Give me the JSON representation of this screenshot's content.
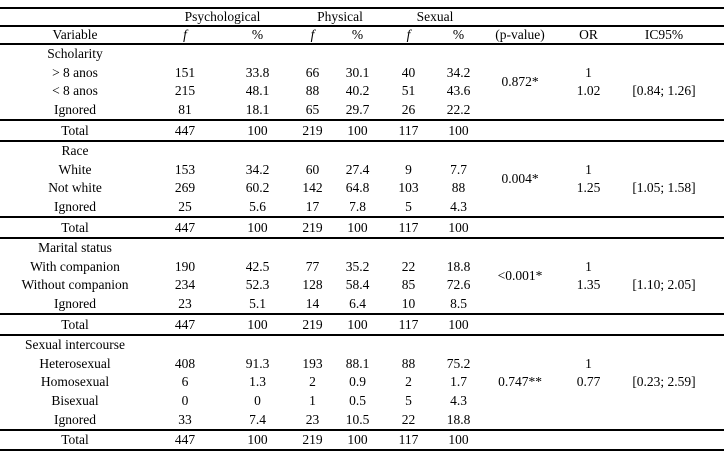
{
  "table": {
    "group_headers": [
      "Psychological",
      "Physical",
      "Sexual"
    ],
    "column_headers": [
      "Variable",
      "f",
      "%",
      "f",
      "%",
      "f",
      "%",
      "(p-value)",
      "OR",
      "IC95%"
    ],
    "sections": [
      {
        "title": "Scholarity",
        "p_value": "0.872*",
        "p_start": 0,
        "p_span": 2,
        "rows": [
          {
            "label": "> 8 anos",
            "values": [
              "151",
              "33.8",
              "66",
              "30.1",
              "40",
              "34.2"
            ],
            "or": "1",
            "ic": ""
          },
          {
            "label": "< 8 anos",
            "values": [
              "215",
              "48.1",
              "88",
              "40.2",
              "51",
              "43.6"
            ],
            "or": "1.02",
            "ic": "[0.84; 1.26]"
          },
          {
            "label": "Ignored",
            "values": [
              "81",
              "18.1",
              "65",
              "29.7",
              "26",
              "22.2"
            ],
            "or": "",
            "ic": ""
          }
        ],
        "total": {
          "label": "Total",
          "values": [
            "447",
            "100",
            "219",
            "100",
            "117",
            "100"
          ]
        }
      },
      {
        "title": "Race",
        "p_value": "0.004*",
        "p_start": 0,
        "p_span": 2,
        "rows": [
          {
            "label": "White",
            "values": [
              "153",
              "34.2",
              "60",
              "27.4",
              "9",
              "7.7"
            ],
            "or": "1",
            "ic": ""
          },
          {
            "label": "Not white",
            "values": [
              "269",
              "60.2",
              "142",
              "64.8",
              "103",
              "88"
            ],
            "or": "1.25",
            "ic": "[1.05; 1.58]"
          },
          {
            "label": "Ignored",
            "values": [
              "25",
              "5.6",
              "17",
              "7.8",
              "5",
              "4.3"
            ],
            "or": "",
            "ic": ""
          }
        ],
        "total": {
          "label": "Total",
          "values": [
            "447",
            "100",
            "219",
            "100",
            "117",
            "100"
          ]
        }
      },
      {
        "title": "Marital status",
        "p_value": "<0.001*",
        "p_start": 0,
        "p_span": 2,
        "rows": [
          {
            "label": "With companion",
            "values": [
              "190",
              "42.5",
              "77",
              "35.2",
              "22",
              "18.8"
            ],
            "or": "1",
            "ic": ""
          },
          {
            "label": "Without companion",
            "values": [
              "234",
              "52.3",
              "128",
              "58.4",
              "85",
              "72.6"
            ],
            "or": "1.35",
            "ic": "[1.10; 2.05]"
          },
          {
            "label": "Ignored",
            "values": [
              "23",
              "5.1",
              "14",
              "6.4",
              "10",
              "8.5"
            ],
            "or": "",
            "ic": ""
          }
        ],
        "total": {
          "label": "Total",
          "values": [
            "447",
            "100",
            "219",
            "100",
            "117",
            "100"
          ]
        }
      },
      {
        "title": "Sexual intercourse",
        "p_value": "0.747**",
        "p_start": 1,
        "p_span": 1,
        "rows": [
          {
            "label": "Heterosexual",
            "values": [
              "408",
              "91.3",
              "193",
              "88.1",
              "88",
              "75.2"
            ],
            "or": "1",
            "ic": ""
          },
          {
            "label": "Homosexual",
            "values": [
              "6",
              "1.3",
              "2",
              "0.9",
              "2",
              "1.7"
            ],
            "or": "0.77",
            "ic": "[0.23; 2.59]"
          },
          {
            "label": "Bisexual",
            "values": [
              "0",
              "0",
              "1",
              "0.5",
              "5",
              "4.3"
            ],
            "or": "",
            "ic": ""
          },
          {
            "label": "Ignored",
            "values": [
              "33",
              "7.4",
              "23",
              "10.5",
              "22",
              "18.8"
            ],
            "or": "",
            "ic": ""
          }
        ],
        "total": {
          "label": "Total",
          "values": [
            "447",
            "100",
            "219",
            "100",
            "117",
            "100"
          ]
        }
      }
    ]
  }
}
